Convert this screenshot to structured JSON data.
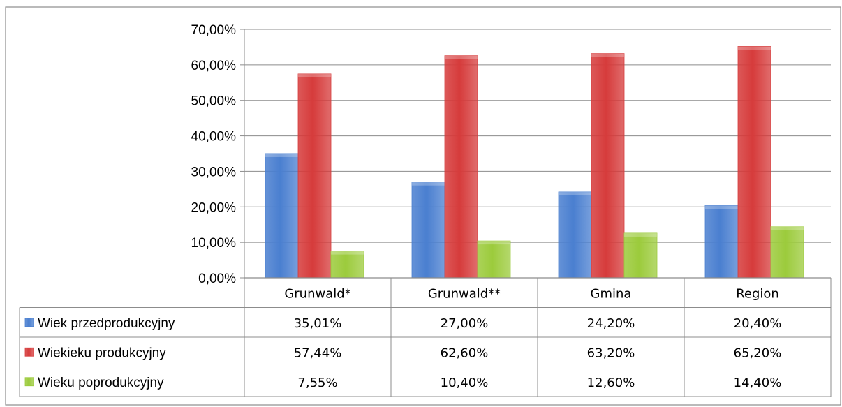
{
  "chart_data": {
    "type": "bar",
    "categories": [
      "Grunwald*",
      "Grunwald**",
      "Gmina",
      "Region"
    ],
    "series": [
      {
        "name": "Wiek przedprodukcyjny",
        "values": [
          35.01,
          27.0,
          24.2,
          20.4
        ],
        "labels": [
          "35,01%",
          "27,00%",
          "24,20%",
          "20,40%"
        ],
        "color": "#4a7fd0"
      },
      {
        "name": "Wiekieku produkcyjny",
        "values": [
          57.44,
          62.6,
          63.2,
          65.2
        ],
        "labels": [
          "57,44%",
          "62,60%",
          "63,20%",
          "65,20%"
        ],
        "color": "#d63b3b"
      },
      {
        "name": "Wieku poprodukcyjny",
        "values": [
          7.55,
          10.4,
          12.6,
          14.4
        ],
        "labels": [
          "7,55%",
          "10,40%",
          "12,60%",
          "14,40%"
        ],
        "color": "#9ccb3c"
      }
    ],
    "yticks": [
      0,
      10,
      20,
      30,
      40,
      50,
      60,
      70
    ],
    "ytick_labels": [
      "0,00%",
      "10,00%",
      "20,00%",
      "30,00%",
      "40,00%",
      "50,00%",
      "60,00%",
      "70,00%"
    ],
    "ylim": [
      0,
      70
    ],
    "grid": true,
    "legend": "data-table-left"
  }
}
